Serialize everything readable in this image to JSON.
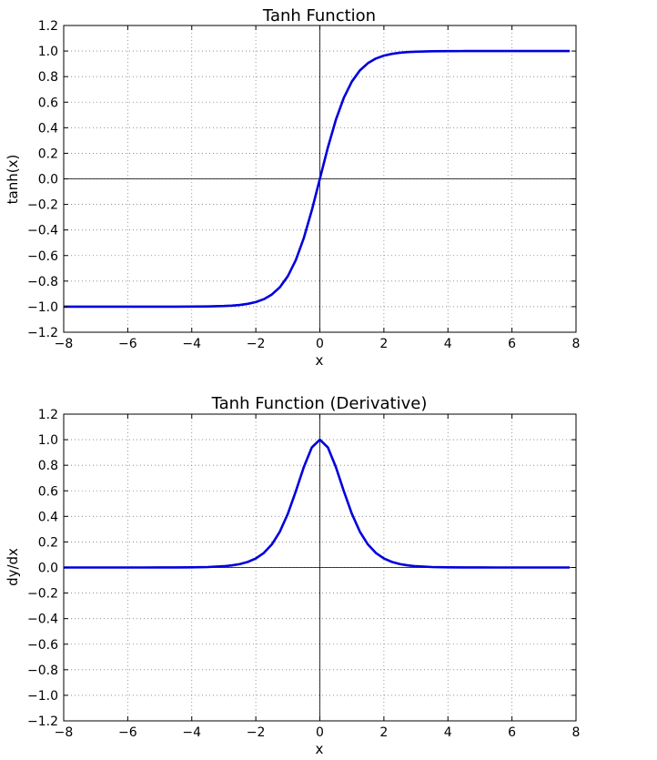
{
  "chart_data": [
    {
      "type": "line",
      "title": "Tanh Function",
      "xlabel": "x",
      "ylabel": "tanh(x)",
      "xlim": [
        -8,
        8
      ],
      "ylim": [
        -1.2,
        1.2
      ],
      "xticks": [
        "−8",
        "−6",
        "−4",
        "−2",
        "0",
        "2",
        "4",
        "6",
        "8"
      ],
      "yticks": [
        "1.2",
        "1.0",
        "0.8",
        "0.6",
        "0.4",
        "0.2",
        "0.0",
        "−0.2",
        "−0.4",
        "−0.6",
        "−0.8",
        "−1.0",
        "−1.2"
      ],
      "grid": true,
      "series_color": "#0000dd",
      "series": [
        {
          "x": [
            -8,
            -7.5,
            -7,
            -6.5,
            -6,
            -5.5,
            -5,
            -4.5,
            -4,
            -3.5,
            -3,
            -2.75,
            -2.5,
            -2.25,
            -2,
            -1.75,
            -1.5,
            -1.25,
            -1,
            -0.75,
            -0.5,
            -0.25,
            0,
            0.25,
            0.5,
            0.75,
            1,
            1.25,
            1.5,
            1.75,
            2,
            2.25,
            2.5,
            2.75,
            3,
            3.5,
            4,
            4.5,
            5,
            5.5,
            6,
            6.5,
            7,
            7.5,
            7.8
          ],
          "y": [
            -1.0,
            -1.0,
            -1.0,
            -1.0,
            -1.0,
            -1.0,
            -0.9999,
            -0.9998,
            -0.9993,
            -0.9982,
            -0.9951,
            -0.9918,
            -0.9866,
            -0.978,
            -0.964,
            -0.9414,
            -0.9051,
            -0.8483,
            -0.7616,
            -0.6351,
            -0.4621,
            -0.2449,
            0.0,
            0.2449,
            0.4621,
            0.6351,
            0.7616,
            0.8483,
            0.9051,
            0.9414,
            0.964,
            0.978,
            0.9866,
            0.9918,
            0.9951,
            0.9982,
            0.9993,
            0.9998,
            0.9999,
            1.0,
            1.0,
            1.0,
            1.0,
            1.0,
            1.0
          ]
        }
      ]
    },
    {
      "type": "line",
      "title": "Tanh Function (Derivative)",
      "xlabel": "x",
      "ylabel": "dy/dx",
      "xlim": [
        -8,
        8
      ],
      "ylim": [
        -1.2,
        1.2
      ],
      "xticks": [
        "−8",
        "−6",
        "−4",
        "−2",
        "0",
        "2",
        "4",
        "6",
        "8"
      ],
      "yticks": [
        "1.2",
        "1.0",
        "0.8",
        "0.6",
        "0.4",
        "0.2",
        "0.0",
        "−0.2",
        "−0.4",
        "−0.6",
        "−0.8",
        "−1.0",
        "−1.2"
      ],
      "grid": true,
      "series_color": "#0000dd",
      "series": [
        {
          "x": [
            -8,
            -7.5,
            -7,
            -6.5,
            -6,
            -5.5,
            -5,
            -4.5,
            -4,
            -3.5,
            -3,
            -2.75,
            -2.5,
            -2.25,
            -2,
            -1.75,
            -1.5,
            -1.25,
            -1,
            -0.75,
            -0.5,
            -0.25,
            0,
            0.25,
            0.5,
            0.75,
            1,
            1.25,
            1.5,
            1.75,
            2,
            2.25,
            2.5,
            2.75,
            3,
            3.5,
            4,
            4.5,
            5,
            5.5,
            6,
            6.5,
            7,
            7.5,
            7.8
          ],
          "y": [
            0.0,
            0.0,
            0.0,
            0.0,
            0.0,
            0.0001,
            0.0002,
            0.0005,
            0.0013,
            0.0036,
            0.0099,
            0.0163,
            0.0266,
            0.0436,
            0.0707,
            0.1138,
            0.1807,
            0.2804,
            0.42,
            0.5966,
            0.7864,
            0.94,
            1.0,
            0.94,
            0.7864,
            0.5966,
            0.42,
            0.2804,
            0.1807,
            0.1138,
            0.0707,
            0.0436,
            0.0266,
            0.0163,
            0.0099,
            0.0036,
            0.0013,
            0.0005,
            0.0002,
            0.0001,
            0.0,
            0.0,
            0.0,
            0.0,
            0.0
          ]
        }
      ]
    }
  ]
}
